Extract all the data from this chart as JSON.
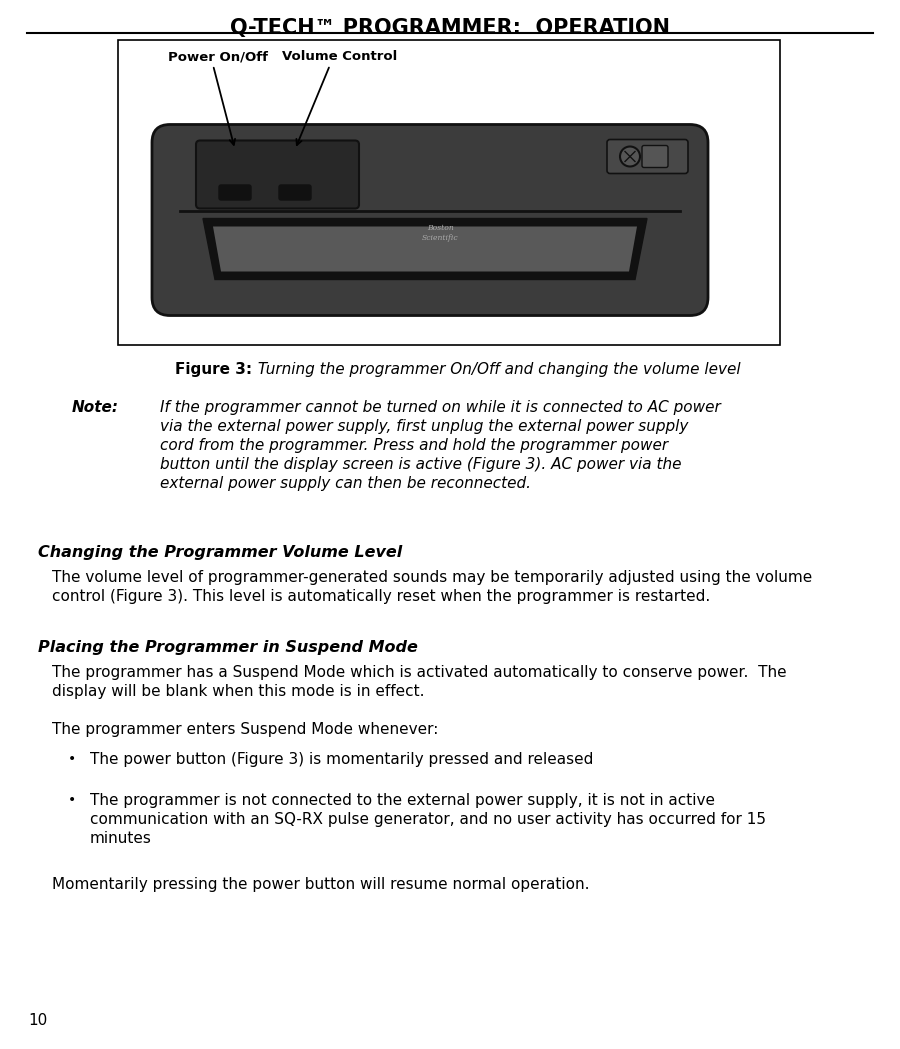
{
  "title": "Q-TECH™ PROGRAMMER:  OPERATION",
  "background_color": "#ffffff",
  "text_color": "#000000",
  "figure_caption_bold": "Figure 3:",
  "figure_caption_italic": " Turning the programmer On/Off and changing the volume level",
  "note_label": "Note:",
  "note_text": "If the programmer cannot be turned on while it is connected to AC power\nvia the external power supply, first unplug the external power supply\ncord from the programmer. Press and hold the programmer power\nbutton until the display screen is active (Figure 3). AC power via the\nexternal power supply can then be reconnected.",
  "section1_heading": "Changing the Programmer Volume Level",
  "section1_body": "The volume level of programmer-generated sounds may be temporarily adjusted using the volume\ncontrol (Figure 3). This level is automatically reset when the programmer is restarted.",
  "section2_heading": "Placing the Programmer in Suspend Mode",
  "section2_body": "The programmer has a Suspend Mode which is activated automatically to conserve power.  The\ndisplay will be blank when this mode is in effect.",
  "section2_body2": "The programmer enters Suspend Mode whenever:",
  "bullet1": "The power button (Figure 3) is momentarily pressed and released",
  "bullet2_line1": "The programmer is not connected to the external power supply, it is not in active",
  "bullet2_line2": "communication with an SQ-RX pulse generator, and no user activity has occurred for 15",
  "bullet2_line3": "minutes",
  "section2_closing": "Momentarily pressing the power button will resume normal operation.",
  "page_number": "10",
  "label_power": "Power On/Off",
  "label_volume": "Volume Control"
}
